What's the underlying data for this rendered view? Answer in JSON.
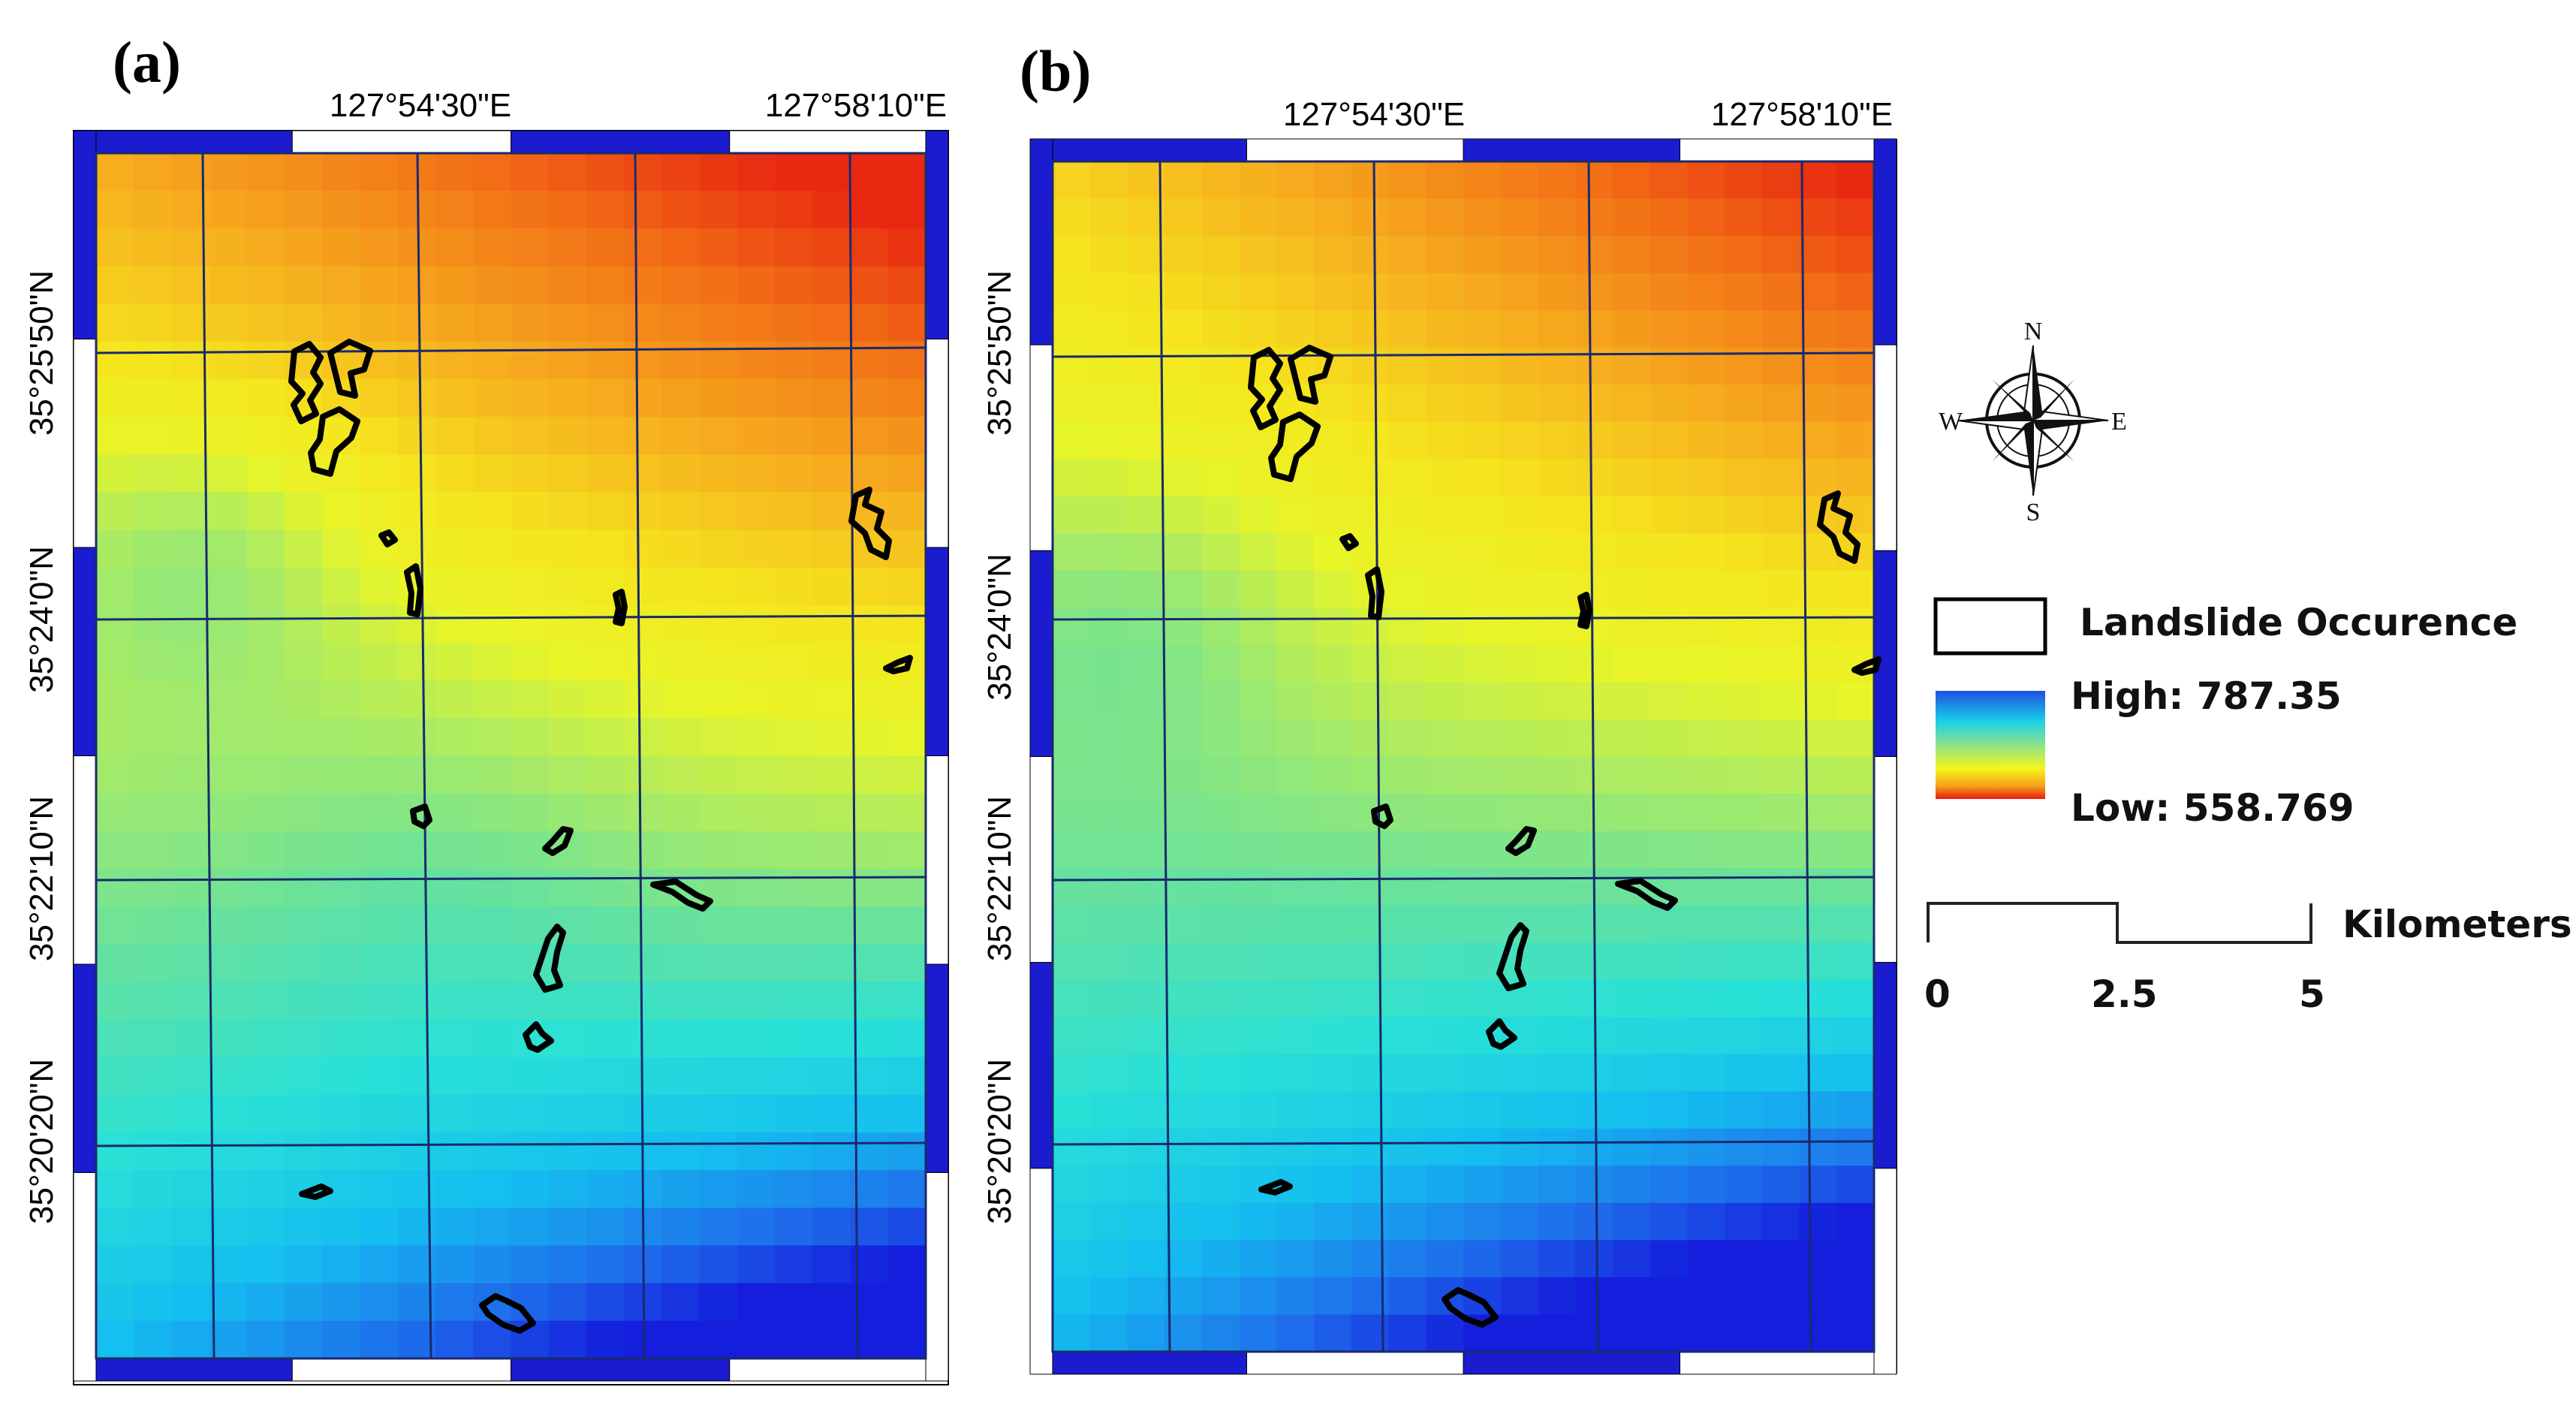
{
  "panels": [
    {
      "label": "(a)",
      "lon_labels": [
        "127°54'30\"E",
        "127°58'10\"E"
      ],
      "lat_labels": [
        "35°25'50\"N",
        "35°24'0\"N",
        "35°22'10\"N",
        "35°20'20\"N"
      ],
      "gradient": "A"
    },
    {
      "label": "(b)",
      "lon_labels": [
        "127°54'30\"E",
        "127°58'10\"E"
      ],
      "lat_labels": [
        "35°25'50\"N",
        "35°24'0\"N",
        "35°22'10\"N",
        "35°20'20\"N"
      ],
      "gradient": "B"
    }
  ],
  "compass": {
    "n": "N",
    "s": "S",
    "e": "E",
    "w": "W"
  },
  "legend": {
    "landslide_label": "Landslide Occurence",
    "high_label": "High: 787.35",
    "low_label": "Low: 558.769",
    "high_value": 787.35,
    "low_value": 558.769
  },
  "scalebar": {
    "unit": "Kilometers",
    "ticks": [
      "0",
      "2.5",
      "5"
    ]
  },
  "colors": {
    "frame_blue": "#1b1bd0",
    "grid_line": "#1a2a6e",
    "polygon": "#000000"
  }
}
